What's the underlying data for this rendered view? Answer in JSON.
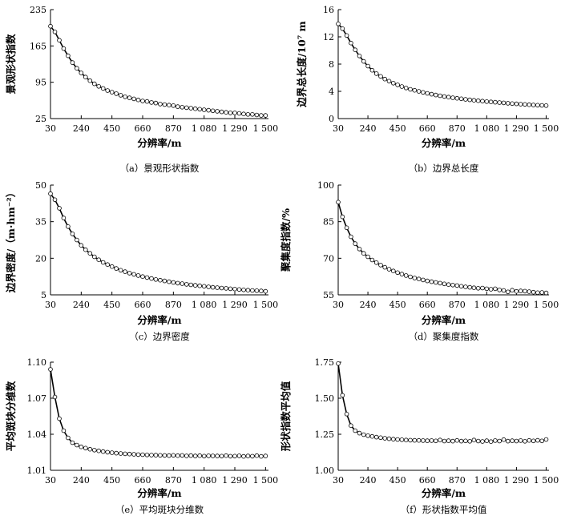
{
  "chart_data": [
    {
      "type": "line",
      "caption": "（a）景观形状指数",
      "xlabel": "分辨率/m",
      "ylabel": "景观形状指数",
      "xlim": [
        30,
        1520
      ],
      "ylim": [
        25,
        235
      ],
      "xticks": [
        30,
        240,
        450,
        660,
        870,
        1080,
        1290,
        1500
      ],
      "xtick_labels": [
        "30",
        "240",
        "450",
        "660",
        "870",
        "1 080",
        "1 290",
        "1 500"
      ],
      "yticks": [
        25,
        95,
        165,
        235
      ],
      "ytick_labels": [
        "25",
        "95",
        "165",
        "235"
      ],
      "x": [
        30,
        60,
        90,
        120,
        150,
        180,
        210,
        240,
        270,
        300,
        330,
        360,
        390,
        420,
        450,
        480,
        510,
        540,
        570,
        600,
        630,
        660,
        690,
        720,
        750,
        780,
        810,
        840,
        870,
        900,
        930,
        960,
        990,
        1020,
        1050,
        1080,
        1110,
        1140,
        1170,
        1200,
        1230,
        1260,
        1290,
        1320,
        1350,
        1380,
        1410,
        1440,
        1470,
        1500
      ],
      "series": [
        {
          "values": [
            203,
            192,
            176,
            160,
            146,
            133,
            122,
            113,
            105,
            98,
            92,
            87,
            83,
            79,
            76,
            73,
            70,
            67,
            65,
            63,
            61,
            59,
            58,
            56,
            55,
            53,
            52,
            51,
            50,
            48,
            47,
            46,
            45,
            44,
            43,
            42,
            41,
            40,
            39,
            38,
            37,
            36,
            36,
            35,
            34,
            33,
            33,
            32,
            31,
            31
          ]
        }
      ]
    },
    {
      "type": "line",
      "caption": "（b）边界总长度",
      "xlabel": "分辨率/m",
      "ylabel": "边界总长度/10⁷ m",
      "xlim": [
        30,
        1520
      ],
      "ylim": [
        0,
        16
      ],
      "xticks": [
        30,
        240,
        450,
        660,
        870,
        1080,
        1290,
        1500
      ],
      "xtick_labels": [
        "30",
        "240",
        "450",
        "660",
        "870",
        "1 080",
        "1 290",
        "1 500"
      ],
      "yticks": [
        0,
        4,
        8,
        12,
        16
      ],
      "ytick_labels": [
        "0",
        "4",
        "8",
        "12",
        "16"
      ],
      "x": [
        30,
        60,
        90,
        120,
        150,
        180,
        210,
        240,
        270,
        300,
        330,
        360,
        390,
        420,
        450,
        480,
        510,
        540,
        570,
        600,
        630,
        660,
        690,
        720,
        750,
        780,
        810,
        840,
        870,
        900,
        930,
        960,
        990,
        1020,
        1050,
        1080,
        1110,
        1140,
        1170,
        1200,
        1230,
        1260,
        1290,
        1320,
        1350,
        1380,
        1410,
        1440,
        1470,
        1500
      ],
      "series": [
        {
          "values": [
            13.9,
            13.2,
            12.2,
            11.1,
            10.1,
            9.2,
            8.4,
            7.7,
            7.1,
            6.6,
            6.2,
            5.8,
            5.5,
            5.2,
            4.95,
            4.7,
            4.5,
            4.3,
            4.15,
            4.0,
            3.85,
            3.7,
            3.58,
            3.46,
            3.35,
            3.25,
            3.15,
            3.06,
            2.98,
            2.9,
            2.82,
            2.75,
            2.68,
            2.62,
            2.56,
            2.5,
            2.45,
            2.4,
            2.35,
            2.3,
            2.25,
            2.2,
            2.16,
            2.12,
            2.08,
            2.04,
            2.0,
            1.97,
            1.94,
            1.9
          ]
        }
      ]
    },
    {
      "type": "line",
      "caption": "（c）边界密度",
      "xlabel": "分辨率/m",
      "ylabel": "边界密度/（m·hm⁻²）",
      "xlim": [
        30,
        1520
      ],
      "ylim": [
        5,
        50
      ],
      "xticks": [
        30,
        240,
        450,
        660,
        870,
        1080,
        1290,
        1500
      ],
      "xtick_labels": [
        "30",
        "240",
        "450",
        "660",
        "870",
        "1 080",
        "1 290",
        "1 500"
      ],
      "yticks": [
        5,
        20,
        35,
        50
      ],
      "ytick_labels": [
        "5",
        "20",
        "35",
        "50"
      ],
      "x": [
        30,
        60,
        90,
        120,
        150,
        180,
        210,
        240,
        270,
        300,
        330,
        360,
        390,
        420,
        450,
        480,
        510,
        540,
        570,
        600,
        630,
        660,
        690,
        720,
        750,
        780,
        810,
        840,
        870,
        900,
        930,
        960,
        990,
        1020,
        1050,
        1080,
        1110,
        1140,
        1170,
        1200,
        1230,
        1260,
        1290,
        1320,
        1350,
        1380,
        1410,
        1440,
        1470,
        1500
      ],
      "series": [
        {
          "values": [
            46.5,
            44,
            40.5,
            36.5,
            33,
            30,
            27.5,
            25.3,
            23.5,
            22,
            20.6,
            19.4,
            18.3,
            17.4,
            16.6,
            15.8,
            15.1,
            14.5,
            13.9,
            13.4,
            12.9,
            12.5,
            12.1,
            11.7,
            11.3,
            11,
            10.7,
            10.4,
            10.1,
            9.8,
            9.6,
            9.3,
            9.1,
            8.9,
            8.7,
            8.5,
            8.3,
            8.1,
            7.95,
            7.8,
            7.65,
            7.5,
            7.35,
            7.2,
            7.05,
            6.9,
            6.8,
            6.7,
            6.6,
            6.45
          ]
        }
      ]
    },
    {
      "type": "line",
      "caption": "（d）聚集度指数",
      "xlabel": "分辨率/m",
      "ylabel": "聚集度指数/%",
      "xlim": [
        30,
        1520
      ],
      "ylim": [
        55,
        100
      ],
      "xticks": [
        30,
        240,
        450,
        660,
        870,
        1080,
        1290,
        1500
      ],
      "xtick_labels": [
        "30",
        "240",
        "450",
        "660",
        "870",
        "1 080",
        "1 290",
        "1 500"
      ],
      "yticks": [
        55,
        70,
        85,
        100
      ],
      "ytick_labels": [
        "55",
        "70",
        "85",
        "100"
      ],
      "x": [
        30,
        60,
        90,
        120,
        150,
        180,
        210,
        240,
        270,
        300,
        330,
        360,
        390,
        420,
        450,
        480,
        510,
        540,
        570,
        600,
        630,
        660,
        690,
        720,
        750,
        780,
        810,
        840,
        870,
        900,
        930,
        960,
        990,
        1020,
        1050,
        1080,
        1110,
        1140,
        1170,
        1200,
        1230,
        1260,
        1290,
        1320,
        1350,
        1380,
        1410,
        1440,
        1470,
        1500
      ],
      "series": [
        {
          "values": [
            93,
            87,
            82.5,
            78.8,
            76,
            73.8,
            72,
            70.6,
            69.3,
            68.2,
            67.2,
            66.3,
            65.5,
            64.8,
            64.1,
            63.5,
            62.9,
            62.4,
            61.9,
            61.5,
            61.1,
            60.7,
            60.4,
            60.1,
            59.8,
            59.5,
            59.2,
            59.0,
            58.8,
            58.5,
            58.3,
            58.1,
            57.9,
            57.7,
            57.8,
            57.5,
            57.3,
            57.5,
            57.0,
            56.8,
            56.2,
            56.9,
            56.4,
            56.6,
            56.5,
            56.3,
            56.1,
            55.9,
            56.0,
            55.8
          ]
        }
      ]
    },
    {
      "type": "line",
      "caption": "（e）平均斑块分维数",
      "xlabel": "分辨率/m",
      "ylabel": "平均斑块分维数",
      "xlim": [
        30,
        1520
      ],
      "ylim": [
        1.01,
        1.1
      ],
      "xticks": [
        30,
        240,
        450,
        660,
        870,
        1080,
        1290,
        1500
      ],
      "xtick_labels": [
        "30",
        "240",
        "450",
        "660",
        "870",
        "1 080",
        "1 290",
        "1 500"
      ],
      "yticks": [
        1.01,
        1.04,
        1.07,
        1.1
      ],
      "ytick_labels": [
        "1.01",
        "1.04",
        "1.07",
        "1.10"
      ],
      "x": [
        30,
        60,
        90,
        120,
        150,
        180,
        210,
        240,
        270,
        300,
        330,
        360,
        390,
        420,
        450,
        480,
        510,
        540,
        570,
        600,
        630,
        660,
        690,
        720,
        750,
        780,
        810,
        840,
        870,
        900,
        930,
        960,
        990,
        1020,
        1050,
        1080,
        1110,
        1140,
        1170,
        1200,
        1230,
        1260,
        1290,
        1320,
        1350,
        1380,
        1410,
        1440,
        1470,
        1500
      ],
      "series": [
        {
          "values": [
            1.094,
            1.071,
            1.053,
            1.043,
            1.037,
            1.033,
            1.031,
            1.0295,
            1.0285,
            1.0275,
            1.0268,
            1.0262,
            1.0256,
            1.0251,
            1.0247,
            1.0243,
            1.024,
            1.0237,
            1.0235,
            1.0233,
            1.0231,
            1.023,
            1.0228,
            1.0227,
            1.0226,
            1.0225,
            1.0224,
            1.0223,
            1.0225,
            1.0222,
            1.0224,
            1.022,
            1.0223,
            1.0219,
            1.0222,
            1.0218,
            1.0221,
            1.022,
            1.0219,
            1.0218,
            1.0222,
            1.0217,
            1.0218,
            1.0221,
            1.0216,
            1.0219,
            1.0217,
            1.0222,
            1.0216,
            1.0219
          ]
        }
      ]
    },
    {
      "type": "line",
      "caption": "（f）形状指数平均值",
      "xlabel": "分辨率/m",
      "ylabel": "形状指数平均值",
      "xlim": [
        30,
        1520
      ],
      "ylim": [
        1,
        1.75
      ],
      "xticks": [
        30,
        240,
        450,
        660,
        870,
        1080,
        1290,
        1500
      ],
      "xtick_labels": [
        "30",
        "240",
        "450",
        "660",
        "870",
        "1 080",
        "1 290",
        "1 500"
      ],
      "yticks": [
        1.0,
        1.25,
        1.5,
        1.75
      ],
      "ytick_labels": [
        "1.00",
        "1.25",
        "1.50",
        "1.75"
      ],
      "x": [
        30,
        60,
        90,
        120,
        150,
        180,
        210,
        240,
        270,
        300,
        330,
        360,
        390,
        420,
        450,
        480,
        510,
        540,
        570,
        600,
        630,
        660,
        690,
        720,
        750,
        780,
        810,
        840,
        870,
        900,
        930,
        960,
        990,
        1020,
        1050,
        1080,
        1110,
        1140,
        1170,
        1200,
        1230,
        1260,
        1290,
        1320,
        1350,
        1380,
        1410,
        1440,
        1470,
        1500
      ],
      "series": [
        {
          "values": [
            1.74,
            1.52,
            1.39,
            1.31,
            1.275,
            1.258,
            1.247,
            1.24,
            1.235,
            1.23,
            1.226,
            1.222,
            1.219,
            1.216,
            1.214,
            1.212,
            1.21,
            1.209,
            1.208,
            1.207,
            1.206,
            1.205,
            1.206,
            1.204,
            1.21,
            1.203,
            1.205,
            1.202,
            1.207,
            1.202,
            1.204,
            1.201,
            1.21,
            1.203,
            1.2,
            1.205,
            1.199,
            1.206,
            1.203,
            1.213,
            1.202,
            1.205,
            1.203,
            1.206,
            1.201,
            1.207,
            1.204,
            1.208,
            1.204,
            1.214
          ]
        }
      ]
    }
  ]
}
